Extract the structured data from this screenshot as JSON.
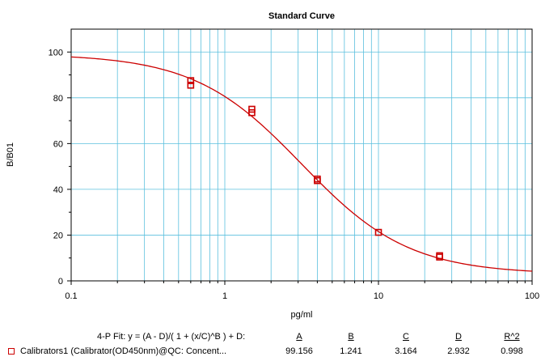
{
  "chart_data": {
    "type": "scatter",
    "title": "Standard Curve",
    "xlabel": "pg/ml",
    "ylabel": "B/B01",
    "x_scale": "log",
    "xlim": [
      0.1,
      100
    ],
    "ylim": [
      0,
      110
    ],
    "x_ticks": [
      "0.1",
      "1",
      "10",
      "100"
    ],
    "y_ticks": [
      "0",
      "20",
      "40",
      "60",
      "80",
      "100"
    ],
    "grid": true,
    "colors": {
      "grid": "#5bc0de",
      "series": "#cc0000"
    },
    "series": [
      {
        "name": "Calibrators1 (Calibrator(OD450nm)@QC: Concent...",
        "marker": "open-square",
        "points": [
          {
            "x": 0.6,
            "y": 87.5
          },
          {
            "x": 0.6,
            "y": 85.5
          },
          {
            "x": 1.5,
            "y": 75.0
          },
          {
            "x": 1.5,
            "y": 73.5
          },
          {
            "x": 4.0,
            "y": 44.5
          },
          {
            "x": 4.0,
            "y": 43.8
          },
          {
            "x": 10.0,
            "y": 21.2
          },
          {
            "x": 25.0,
            "y": 11.0
          },
          {
            "x": 25.0,
            "y": 10.4
          }
        ],
        "fit": {
          "A": 99.156,
          "B": 1.241,
          "C": 3.164,
          "D": 2.932,
          "R2": 0.998
        }
      }
    ]
  },
  "fit_table": {
    "equation": "4-P Fit: y = (A - D)/( 1 + (x/C)^B ) + D:",
    "headers": [
      "A",
      "B",
      "C",
      "D",
      "R^2"
    ],
    "row_label": "Calibrators1 (Calibrator(OD450nm)@QC: Concent...",
    "row_values": [
      "99.156",
      "1.241",
      "3.164",
      "2.932",
      "0.998"
    ]
  }
}
